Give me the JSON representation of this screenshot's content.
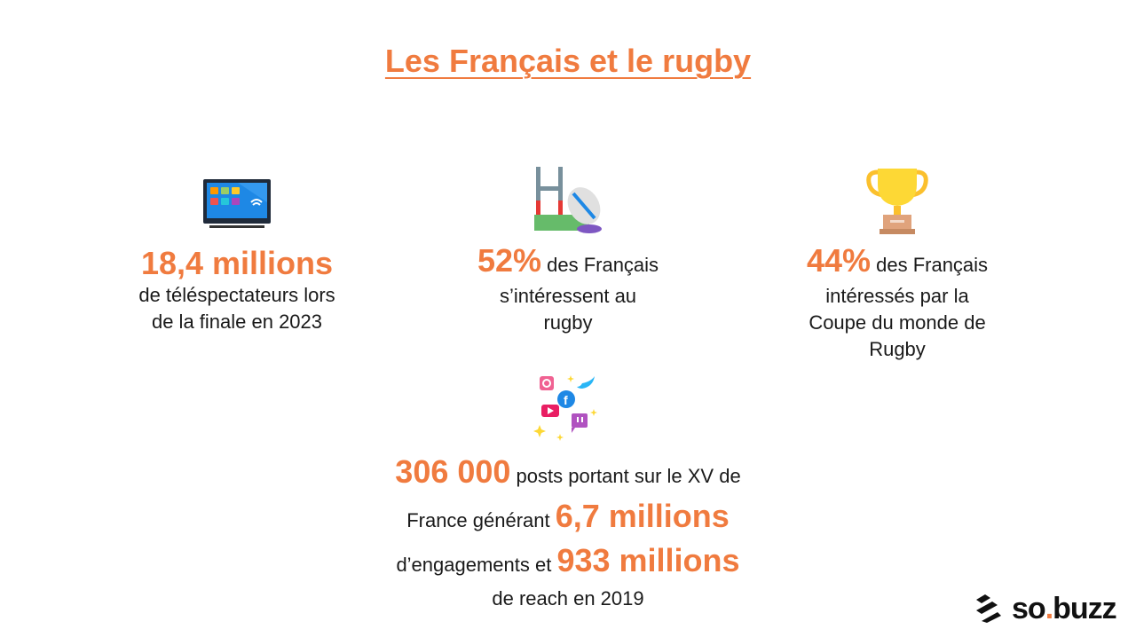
{
  "title": "Les Français et le rugby",
  "colors": {
    "accent": "#f07b3f",
    "text": "#1a1a1a"
  },
  "stats": {
    "tv": {
      "icon": "tv-icon",
      "value": "18,4 millions",
      "line1": "de téléspectateurs lors",
      "line2": "de la finale en 2023"
    },
    "interest": {
      "icon": "rugby-posts-ball-icon",
      "value": "52%",
      "after_value": " des Français",
      "line2": "s’intéressent au",
      "line3": "rugby"
    },
    "cup": {
      "icon": "trophy-icon",
      "value": "44%",
      "after_value": " des Français",
      "line2": "intéressés par la",
      "line3": "Coupe du monde de",
      "line4": "Rugby"
    },
    "social": {
      "icon": "social-media-icon",
      "posts_value": "306 000",
      "posts_text": " posts portant sur le XV de",
      "engagement_pre": "France générant ",
      "engagement_value": "6,7 millions",
      "reach_pre": "d’engagements et ",
      "reach_value": "933 millions",
      "reach_post": "de reach en 2019"
    }
  },
  "logo": {
    "name": "so",
    "dot": ".",
    "suffix": "buzz",
    "icon": "sobuzz-logo-icon"
  }
}
